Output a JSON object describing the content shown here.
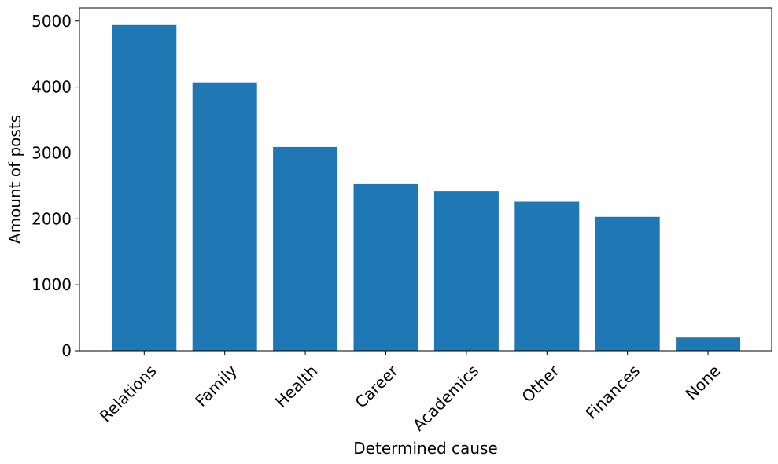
{
  "chart_data": {
    "type": "bar",
    "categories": [
      "Relations",
      "Family",
      "Health",
      "Career",
      "Academics",
      "Other",
      "Finances",
      "None"
    ],
    "values": [
      4940,
      4070,
      3090,
      2530,
      2420,
      2260,
      2030,
      200
    ],
    "title": "",
    "xlabel": "Determined cause",
    "ylabel": "Amount of posts",
    "ylim": [
      0,
      5200
    ],
    "yticks": [
      0,
      1000,
      2000,
      3000,
      4000,
      5000
    ],
    "ytick_labels": [
      "0",
      "1000",
      "2000",
      "3000",
      "4000",
      "5000"
    ],
    "grid": false,
    "bar_color": "#1f77b4",
    "xtick_rotation_deg": 45
  }
}
